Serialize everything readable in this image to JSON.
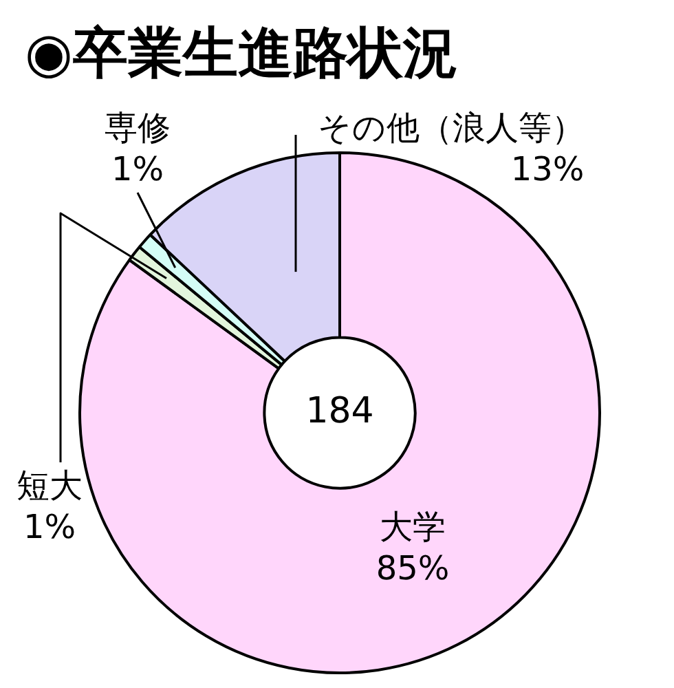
{
  "chart_data": {
    "type": "donut",
    "title": "◉卒業生進路状況",
    "categories": [
      "大学",
      "短大",
      "専修",
      "その他（浪人等）"
    ],
    "values": [
      85,
      1,
      1,
      13
    ],
    "value_labels": [
      "85%",
      "1%",
      "1%",
      "13%"
    ],
    "colors": [
      "#ffd6fb",
      "#e2f5dc",
      "#d4fdf6",
      "#d9d4f7"
    ],
    "annotations": [
      "184"
    ],
    "legend": false
  }
}
